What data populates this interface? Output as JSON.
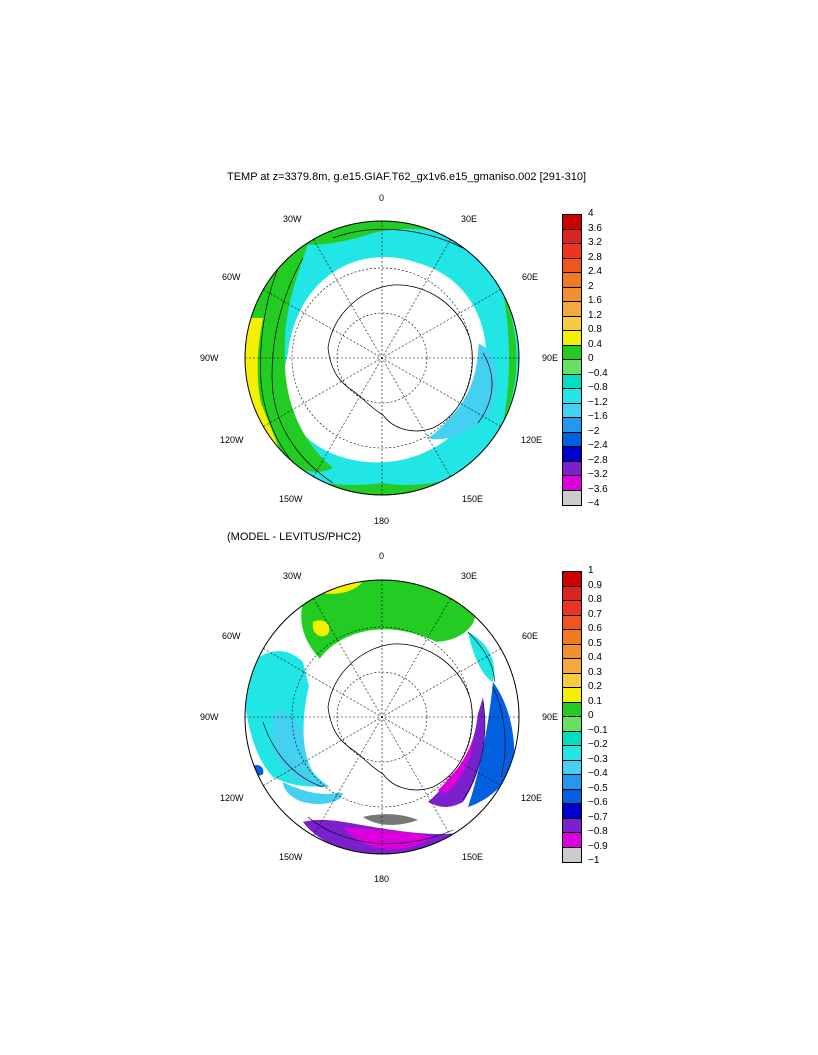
{
  "top_panel": {
    "title": "TEMP at z=3379.8m, g.e15.GIAF.T62_gx1v6.e15_gmaniso.002 [291-310]",
    "lon_labels": [
      "0",
      "30E",
      "60E",
      "90E",
      "120E",
      "150E",
      "180",
      "150W",
      "120W",
      "90W",
      "60W",
      "30W"
    ],
    "colorbar": {
      "labels": [
        "4",
        "3.6",
        "3.2",
        "2.8",
        "2.4",
        "2",
        "1.6",
        "1.2",
        "0.8",
        "0.4",
        "0",
        "−0.4",
        "−0.8",
        "−1.2",
        "−1.6",
        "−2",
        "−2.4",
        "−2.8",
        "−3.2",
        "−3.6",
        "−4"
      ],
      "colors": [
        "#cc0000",
        "#dd2222",
        "#ee3322",
        "#f05520",
        "#f07a20",
        "#f09030",
        "#f5a840",
        "#f5cc40",
        "#f5f000",
        "#22cc22",
        "#66e060",
        "#00e0c0",
        "#22e6e6",
        "#44d0f0",
        "#2299ee",
        "#0060e0",
        "#0000cc",
        "#7a20cc",
        "#dd00dd",
        "#cccccc",
        "#777777"
      ]
    }
  },
  "bottom_panel": {
    "title": "(MODEL - LEVITUS/PHC2)",
    "lon_labels": [
      "0",
      "30E",
      "60E",
      "90E",
      "120E",
      "150E",
      "180",
      "150W",
      "120W",
      "90W",
      "60W",
      "30W"
    ],
    "colorbar": {
      "labels": [
        "1",
        "0.9",
        "0.8",
        "0.7",
        "0.6",
        "0.5",
        "0.4",
        "0.3",
        "0.2",
        "0.1",
        "0",
        "−0.1",
        "−0.2",
        "−0.3",
        "−0.4",
        "−0.5",
        "−0.6",
        "−0.7",
        "−0.8",
        "−0.9",
        "−1"
      ],
      "colors": [
        "#cc0000",
        "#dd2222",
        "#ee3322",
        "#f05520",
        "#f07a20",
        "#f09030",
        "#f5a840",
        "#f5cc40",
        "#f5f000",
        "#22cc22",
        "#66e060",
        "#00e0c0",
        "#22e6e6",
        "#44d0f0",
        "#2299ee",
        "#0060e0",
        "#0000cc",
        "#7a20cc",
        "#dd00dd",
        "#cccccc",
        "#777777"
      ]
    }
  }
}
